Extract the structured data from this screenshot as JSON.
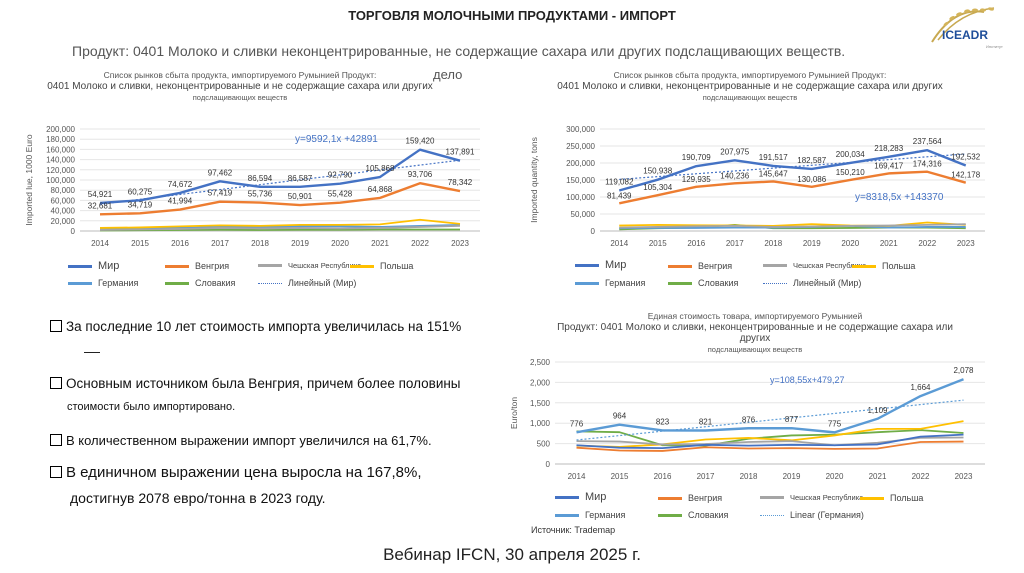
{
  "header": {
    "title": "ТОРГОВЛЯ МОЛОЧНЫМИ ПРОДУКТАМИ - ИМПОРТ",
    "subtitle": "Продукт: 0401 Молоко и сливки неконцентрированные, не содержащие сахара или других подслащивающих веществ.",
    "logo_text": "ICEADR",
    "logo_small": "Институт"
  },
  "colors": {
    "mir": "#4472C4",
    "vengria": "#ED7D31",
    "czech": "#A5A5A5",
    "polsha": "#FFC000",
    "germania": "#5B9BD5",
    "slovakia": "#70AD47"
  },
  "bullets": [
    "За последние 10 лет стоимость импорта увеличилась на 151%",
    "Основным источником была Венгрия, причем более половины",
    "стоимости было импортировано.",
    "В количественном выражении импорт увеличился на 61,7%.",
    "В единичном выражении цена выросла на 167,8%,",
    "достигнув 2078 евро/тонна в 2023 году."
  ],
  "source": "Источник: Trademap",
  "footer": "Вебинар IFCN, 30 апреля 2025 г.",
  "chart_data": [
    {
      "type": "line",
      "title_lines": [
        "Список рынков сбыта продукта, импортируемого Румынией Продукт:",
        "0401 Молоко и сливки, неконцентрированные и не содержащие сахара или других",
        "подслащивающих веществ"
      ],
      "extra_label": "дело",
      "ylabel": "Imported lue, 1000 Euro",
      "ylabel_ticks": [
        "0",
        "20,000",
        "40,000",
        "60,000",
        "80,000",
        "100,000",
        "120,000",
        "140,000",
        "160,000",
        "180,000",
        "200,000"
      ],
      "ylim": [
        0,
        200000
      ],
      "categories": [
        "2014",
        "2015",
        "2016",
        "2017",
        "2018",
        "2019",
        "2020",
        "2021",
        "2022",
        "2023"
      ],
      "series": [
        {
          "name": "Мир",
          "color": "#4472C4",
          "values": [
            54921,
            60275,
            74672,
            97462,
            86594,
            86587,
            92790,
            105868,
            159420,
            137891
          ],
          "labels": [
            "54,921",
            "60,275",
            "74,672",
            "97,462",
            "86,594",
            "86,587",
            "92,790",
            "105,868",
            "159,420",
            "137,891"
          ]
        },
        {
          "name": "Венгрия",
          "color": "#ED7D31",
          "values": [
            32681,
            34719,
            41994,
            57419,
            55736,
            50901,
            55428,
            64868,
            93706,
            78342
          ],
          "labels": [
            "32,681",
            "34,719",
            "41,994",
            "57,419",
            "55,736",
            "50,901",
            "55,428",
            "64,868",
            "93,706",
            "78,342"
          ]
        },
        {
          "name": "Чешская Республика",
          "color": "#A5A5A5",
          "values": [
            2000,
            3000,
            4000,
            6000,
            5000,
            6000,
            5000,
            6000,
            8000,
            10000
          ]
        },
        {
          "name": "Польша",
          "color": "#FFC000",
          "values": [
            6000,
            7000,
            9000,
            11000,
            10000,
            12000,
            12000,
            13000,
            22000,
            14000
          ]
        },
        {
          "name": "Германия",
          "color": "#5B9BD5",
          "values": [
            5000,
            5000,
            6000,
            8000,
            8000,
            9000,
            9000,
            8000,
            10000,
            12000
          ]
        },
        {
          "name": "Словакия",
          "color": "#70AD47",
          "values": [
            1000,
            1500,
            2000,
            2500,
            2000,
            2500,
            2500,
            3000,
            3000,
            3000
          ]
        }
      ],
      "trendline": {
        "name": "Линейный (Мир)",
        "equation": "y=9592,1x +42891",
        "slope": 9592.1,
        "intercept": 42891
      }
    },
    {
      "type": "line",
      "title_lines": [
        "Список рынков сбыта продукта, импортируемого Румынией Продукт:",
        "0401 Молоко и сливки, неконцентрированные и не содержащие сахара или других",
        "подслащивающих веществ"
      ],
      "ylabel": "Imported quantity, tons",
      "ylabel_ticks": [
        "0",
        "50,000",
        "100,000",
        "150,000",
        "200,000",
        "250,000",
        "300,000"
      ],
      "ylim": [
        0,
        300000
      ],
      "categories": [
        "2014",
        "2015",
        "2016",
        "2017",
        "2018",
        "2019",
        "2020",
        "2021",
        "2022",
        "2023"
      ],
      "series": [
        {
          "name": "Мир",
          "color": "#4472C4",
          "values": [
            119082,
            150938,
            190709,
            207975,
            191517,
            182587,
            200034,
            218283,
            237564,
            192532
          ],
          "labels": [
            "119,082",
            "150,938",
            "190,709",
            "207,975",
            "191,517",
            "182,587",
            "200,034",
            "218,283",
            "237,564",
            "192,532"
          ]
        },
        {
          "name": "Венгрия",
          "color": "#ED7D31",
          "values": [
            81439,
            105304,
            129935,
            140236,
            145647,
            130086,
            150210,
            169417,
            174316,
            142178
          ],
          "labels": [
            "81,439",
            "105,304",
            "129,935",
            "140,236",
            "145,647",
            "130,086",
            "150,210",
            "169,417",
            "174,316",
            "142,178"
          ]
        },
        {
          "name": "Чешская Республика",
          "color": "#A5A5A5",
          "values": [
            10000,
            12000,
            14000,
            15000,
            12000,
            13000,
            15000,
            16000,
            18000,
            20000
          ]
        },
        {
          "name": "Польша",
          "color": "#FFC000",
          "values": [
            16000,
            18000,
            17000,
            16000,
            15000,
            20000,
            16000,
            15000,
            25000,
            18000
          ]
        },
        {
          "name": "Германия",
          "color": "#5B9BD5",
          "values": [
            8000,
            9000,
            9000,
            10000,
            10000,
            12000,
            15000,
            10000,
            12000,
            12000
          ]
        },
        {
          "name": "Словакия",
          "color": "#70AD47",
          "values": [
            5000,
            8000,
            10000,
            18000,
            8000,
            8000,
            9000,
            10000,
            10000,
            8000
          ]
        }
      ],
      "trendline": {
        "name": "Линейный (Мир)",
        "equation": "y=8318,5x +143370",
        "slope": 8318.5,
        "intercept": 143370
      }
    },
    {
      "type": "line",
      "title_lines": [
        "Единая стоимость товара, импортируемого Румынией",
        "Продукт: 0401 Молоко и сливки, неконцентрированные и не содержащие сахара или других",
        "подслащивающих веществ"
      ],
      "ylabel": "Euro/ton",
      "ylabel_ticks": [
        "0",
        "500",
        "1,000",
        "1,500",
        "2,000",
        "2,500"
      ],
      "ylim": [
        0,
        2500
      ],
      "categories": [
        "2014",
        "2015",
        "2016",
        "2017",
        "2018",
        "2019",
        "2020",
        "2021",
        "2022",
        "2023"
      ],
      "series": [
        {
          "name": "Мир",
          "color": "#4472C4",
          "values": [
            460,
            400,
            390,
            470,
            450,
            470,
            460,
            480,
            670,
            720
          ]
        },
        {
          "name": "Венгрия",
          "color": "#ED7D31",
          "values": [
            400,
            330,
            320,
            410,
            380,
            390,
            370,
            380,
            540,
            550
          ]
        },
        {
          "name": "Чешская Республика",
          "color": "#A5A5A5",
          "values": [
            560,
            550,
            480,
            490,
            540,
            560,
            460,
            520,
            640,
            650
          ]
        },
        {
          "name": "Польша",
          "color": "#FFC000",
          "values": [
            450,
            420,
            480,
            600,
            640,
            580,
            700,
            860,
            860,
            1050
          ]
        },
        {
          "name": "Германия",
          "color": "#5B9BD5",
          "values": [
            776,
            964,
            823,
            821,
            876,
            877,
            775,
            1109,
            1664,
            2078
          ],
          "labels": [
            "776",
            "964",
            "823",
            "821",
            "876",
            "877",
            "775",
            "1,109",
            "1,664",
            "2,078"
          ]
        },
        {
          "name": "Словакия",
          "color": "#70AD47",
          "values": [
            800,
            780,
            460,
            450,
            620,
            700,
            720,
            780,
            830,
            760
          ]
        }
      ],
      "trendline": {
        "name": "Linear (Германия)",
        "equation": "y=108,55x+479,27",
        "slope": 108.55,
        "intercept": 479.27
      }
    }
  ]
}
